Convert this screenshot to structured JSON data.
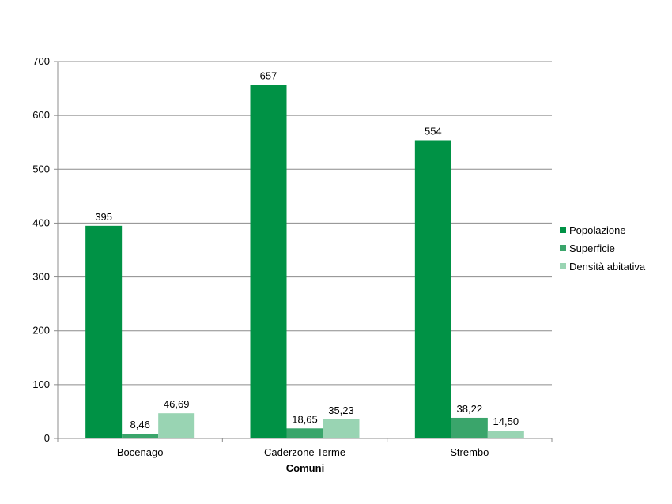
{
  "chart_data": {
    "type": "bar",
    "categories": [
      "Bocenago",
      "Caderzone Terme",
      "Strembo"
    ],
    "series": [
      {
        "name": "Popolazione",
        "values": [
          395,
          657,
          554
        ],
        "labels": [
          "395",
          "657",
          "554"
        ],
        "color": "#009245"
      },
      {
        "name": "Superficie",
        "values": [
          8.46,
          18.65,
          38.22
        ],
        "labels": [
          "8,46",
          "18,65",
          "38,22"
        ],
        "color": "#3aa56b"
      },
      {
        "name": "Densità abitativa",
        "values": [
          46.69,
          35.23,
          14.5
        ],
        "labels": [
          "46,69",
          "35,23",
          "14,50"
        ],
        "color": "#99d4b3"
      }
    ],
    "xlabel": "Comuni",
    "ylabel": "",
    "ylim": [
      0,
      700
    ],
    "yticks": [
      0,
      100,
      200,
      300,
      400,
      500,
      600,
      700
    ],
    "grid": true,
    "legend": "right"
  }
}
